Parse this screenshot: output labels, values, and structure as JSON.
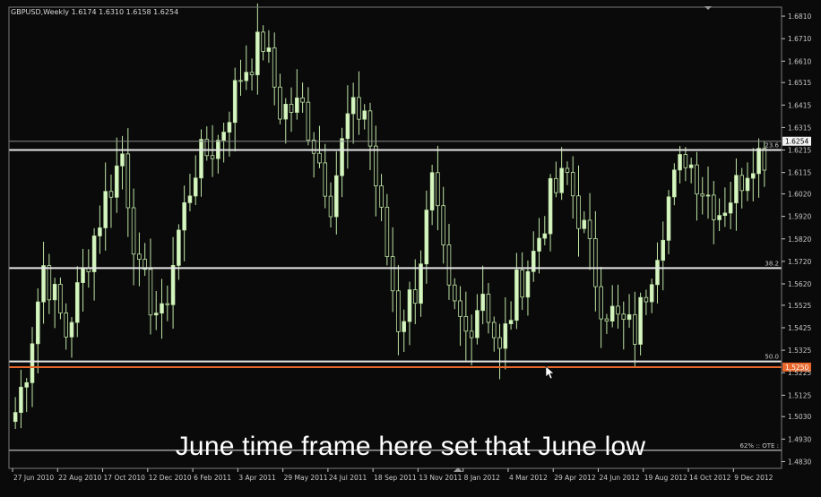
{
  "header": {
    "title": "GBPUSD,Weekly  1.6174 1.6310 1.6158 1.6254"
  },
  "caption": "June time frame here set that June low",
  "colors": {
    "background": "#000000",
    "bull": "#d6f5c2",
    "bear": "#0a0a0a",
    "wick": "#bfe6a6",
    "axis": "#c8c8c8",
    "level_line": "#e6e6e6",
    "current_price_line": "#8a8a8a",
    "ote_line": "#e8672a",
    "price_tag": "#e8672a"
  },
  "chart_data": {
    "type": "candlestick",
    "symbol": "GBPUSD",
    "timeframe": "Weekly",
    "ylim": [
      1.48,
      1.685
    ],
    "y_ticks": [
      "1.6810",
      "1.6710",
      "1.6610",
      "1.6515",
      "1.6415",
      "1.6315",
      "1.6215",
      "1.6115",
      "1.6020",
      "1.5920",
      "1.5820",
      "1.5720",
      "1.5620",
      "1.5525",
      "1.5425",
      "1.5325",
      "1.5225",
      "1.5125",
      "1.5030",
      "1.4930",
      "1.4830"
    ],
    "x_ticks": [
      {
        "label": "27 Jun 2010",
        "index": 0
      },
      {
        "label": "22 Aug 2010",
        "index": 8
      },
      {
        "label": "17 Oct 2010",
        "index": 16
      },
      {
        "label": "12 Dec 2010",
        "index": 24
      },
      {
        "label": "6 Feb 2011",
        "index": 32
      },
      {
        "label": "3 Apr 2011",
        "index": 40
      },
      {
        "label": "29 May 2011",
        "index": 48
      },
      {
        "label": "24 Jul 2011",
        "index": 56
      },
      {
        "label": "18 Sep 2011",
        "index": 64
      },
      {
        "label": "13 Nov 2011",
        "index": 72
      },
      {
        "label": "8 Jan 2012",
        "index": 80
      },
      {
        "label": "4 Mar 2012",
        "index": 88
      },
      {
        "label": "29 Apr 2012",
        "index": 96
      },
      {
        "label": "24 Jun 2012",
        "index": 104
      },
      {
        "label": "19 Aug 2012",
        "index": 112
      },
      {
        "label": "14 Oct 2012",
        "index": 120
      },
      {
        "label": "9 Dec 2012",
        "index": 128
      }
    ],
    "current_price": "1.6254",
    "ote_price": "1.5250",
    "levels": [
      {
        "price": 1.6215,
        "label": "23.6"
      },
      {
        "price": 1.569,
        "label": "38.2"
      },
      {
        "price": 1.5275,
        "label": "50.0"
      },
      {
        "price": 1.488,
        "label": "62% :: OTE :"
      }
    ],
    "anchors": [
      [
        0,
        1.505
      ],
      [
        2,
        1.525
      ],
      [
        5,
        1.57
      ],
      [
        9,
        1.54
      ],
      [
        13,
        1.575
      ],
      [
        16,
        1.6
      ],
      [
        19,
        1.62
      ],
      [
        22,
        1.565
      ],
      [
        26,
        1.545
      ],
      [
        29,
        1.585
      ],
      [
        32,
        1.615
      ],
      [
        36,
        1.625
      ],
      [
        40,
        1.655
      ],
      [
        44,
        1.67
      ],
      [
        47,
        1.64
      ],
      [
        51,
        1.64
      ],
      [
        53,
        1.625
      ],
      [
        56,
        1.6
      ],
      [
        59,
        1.635
      ],
      [
        62,
        1.64
      ],
      [
        65,
        1.59
      ],
      [
        68,
        1.545
      ],
      [
        71,
        1.56
      ],
      [
        74,
        1.605
      ],
      [
        77,
        1.555
      ],
      [
        80,
        1.54
      ],
      [
        83,
        1.56
      ],
      [
        86,
        1.53
      ],
      [
        89,
        1.56
      ],
      [
        92,
        1.575
      ],
      [
        95,
        1.6
      ],
      [
        98,
        1.61
      ],
      [
        101,
        1.585
      ],
      [
        104,
        1.555
      ],
      [
        107,
        1.545
      ],
      [
        110,
        1.54
      ],
      [
        113,
        1.57
      ],
      [
        116,
        1.6
      ],
      [
        119,
        1.62
      ],
      [
        122,
        1.605
      ],
      [
        125,
        1.595
      ],
      [
        128,
        1.605
      ],
      [
        131,
        1.62
      ]
    ]
  }
}
